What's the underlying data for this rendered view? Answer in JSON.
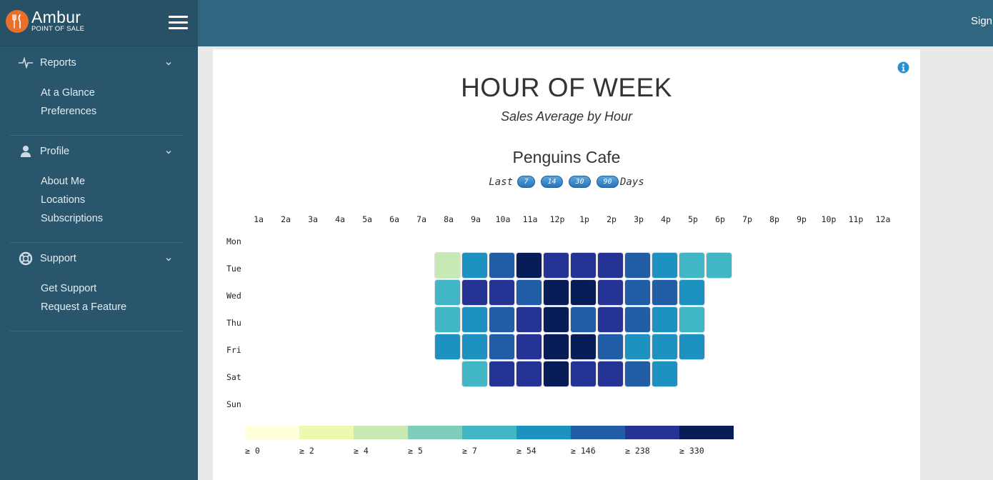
{
  "brand": {
    "name": "Ambur",
    "subtitle": "POINT OF SALE"
  },
  "topbar": {
    "sign_label": "Sign"
  },
  "sidebar": {
    "sections": [
      {
        "key": "reports",
        "label": "Reports",
        "icon": "pulse-icon",
        "items": [
          "At a Glance",
          "Preferences"
        ]
      },
      {
        "key": "profile",
        "label": "Profile",
        "icon": "user-icon",
        "items": [
          "About Me",
          "Locations",
          "Subscriptions"
        ]
      },
      {
        "key": "support",
        "label": "Support",
        "icon": "lifebuoy-icon",
        "items": [
          "Get Support",
          "Request a Feature"
        ]
      }
    ]
  },
  "report": {
    "title": "HOUR OF WEEK",
    "subtitle": "Sales Average by Hour",
    "store": "Penguins Cafe",
    "range_prefix": "Last",
    "range_suffix": "Days",
    "range_options": [
      "7",
      "14",
      "30",
      "90"
    ]
  },
  "colors": {
    "sidebar": "#2a566d",
    "topbar": "#2f6680",
    "accent_orange": "#e8702a",
    "info_blue": "#2b8fd0"
  },
  "chart_data": {
    "type": "heatmap",
    "hours": [
      "1a",
      "2a",
      "3a",
      "4a",
      "5a",
      "6a",
      "7a",
      "8a",
      "9a",
      "10a",
      "11a",
      "12p",
      "1p",
      "2p",
      "3p",
      "4p",
      "5p",
      "6p",
      "7p",
      "8p",
      "9p",
      "10p",
      "11p",
      "12a"
    ],
    "days": [
      "Mon",
      "Tue",
      "Wed",
      "Thu",
      "Fri",
      "Sat",
      "Sun"
    ],
    "legend": {
      "thresholds": [
        0,
        2,
        4,
        5,
        7,
        54,
        146,
        238,
        330
      ],
      "labels": [
        "≥ 0",
        "≥ 2",
        "≥ 4",
        "≥ 5",
        "≥ 7",
        "≥ 54",
        "≥ 146",
        "≥ 238",
        "≥ 330"
      ],
      "colors": [
        "#ffffd9",
        "#edf8b1",
        "#c7e9b4",
        "#7fcdbb",
        "#41b6c4",
        "#1d91c0",
        "#225ea8",
        "#253494",
        "#081d58"
      ]
    },
    "bins_note_unused": null,
    "bins": [
      [
        null,
        null,
        null,
        null,
        null,
        null,
        null,
        null,
        null,
        null,
        null,
        null,
        null,
        null,
        null,
        null,
        null,
        null,
        null,
        null,
        null,
        null,
        null,
        null
      ],
      [
        null,
        null,
        null,
        null,
        null,
        null,
        null,
        2,
        5,
        6,
        8,
        7,
        7,
        7,
        6,
        5,
        4,
        4,
        null,
        null,
        null,
        null,
        null,
        null
      ],
      [
        null,
        null,
        null,
        null,
        null,
        null,
        null,
        4,
        7,
        7,
        6,
        8,
        8,
        7,
        6,
        6,
        5,
        null,
        null,
        null,
        null,
        null,
        null,
        null
      ],
      [
        null,
        null,
        null,
        null,
        null,
        null,
        null,
        4,
        5,
        6,
        7,
        8,
        6,
        7,
        6,
        5,
        4,
        null,
        null,
        null,
        null,
        null,
        null,
        null
      ],
      [
        null,
        null,
        null,
        null,
        null,
        null,
        null,
        5,
        5,
        6,
        7,
        8,
        8,
        6,
        5,
        5,
        5,
        null,
        null,
        null,
        null,
        null,
        null,
        null
      ],
      [
        null,
        null,
        null,
        null,
        null,
        null,
        null,
        null,
        4,
        7,
        7,
        8,
        7,
        7,
        6,
        5,
        null,
        null,
        null,
        null,
        null,
        null,
        null,
        null
      ],
      [
        null,
        null,
        null,
        null,
        null,
        null,
        null,
        null,
        null,
        null,
        null,
        null,
        null,
        null,
        null,
        null,
        null,
        null,
        null,
        null,
        null,
        null,
        null,
        null
      ]
    ]
  }
}
